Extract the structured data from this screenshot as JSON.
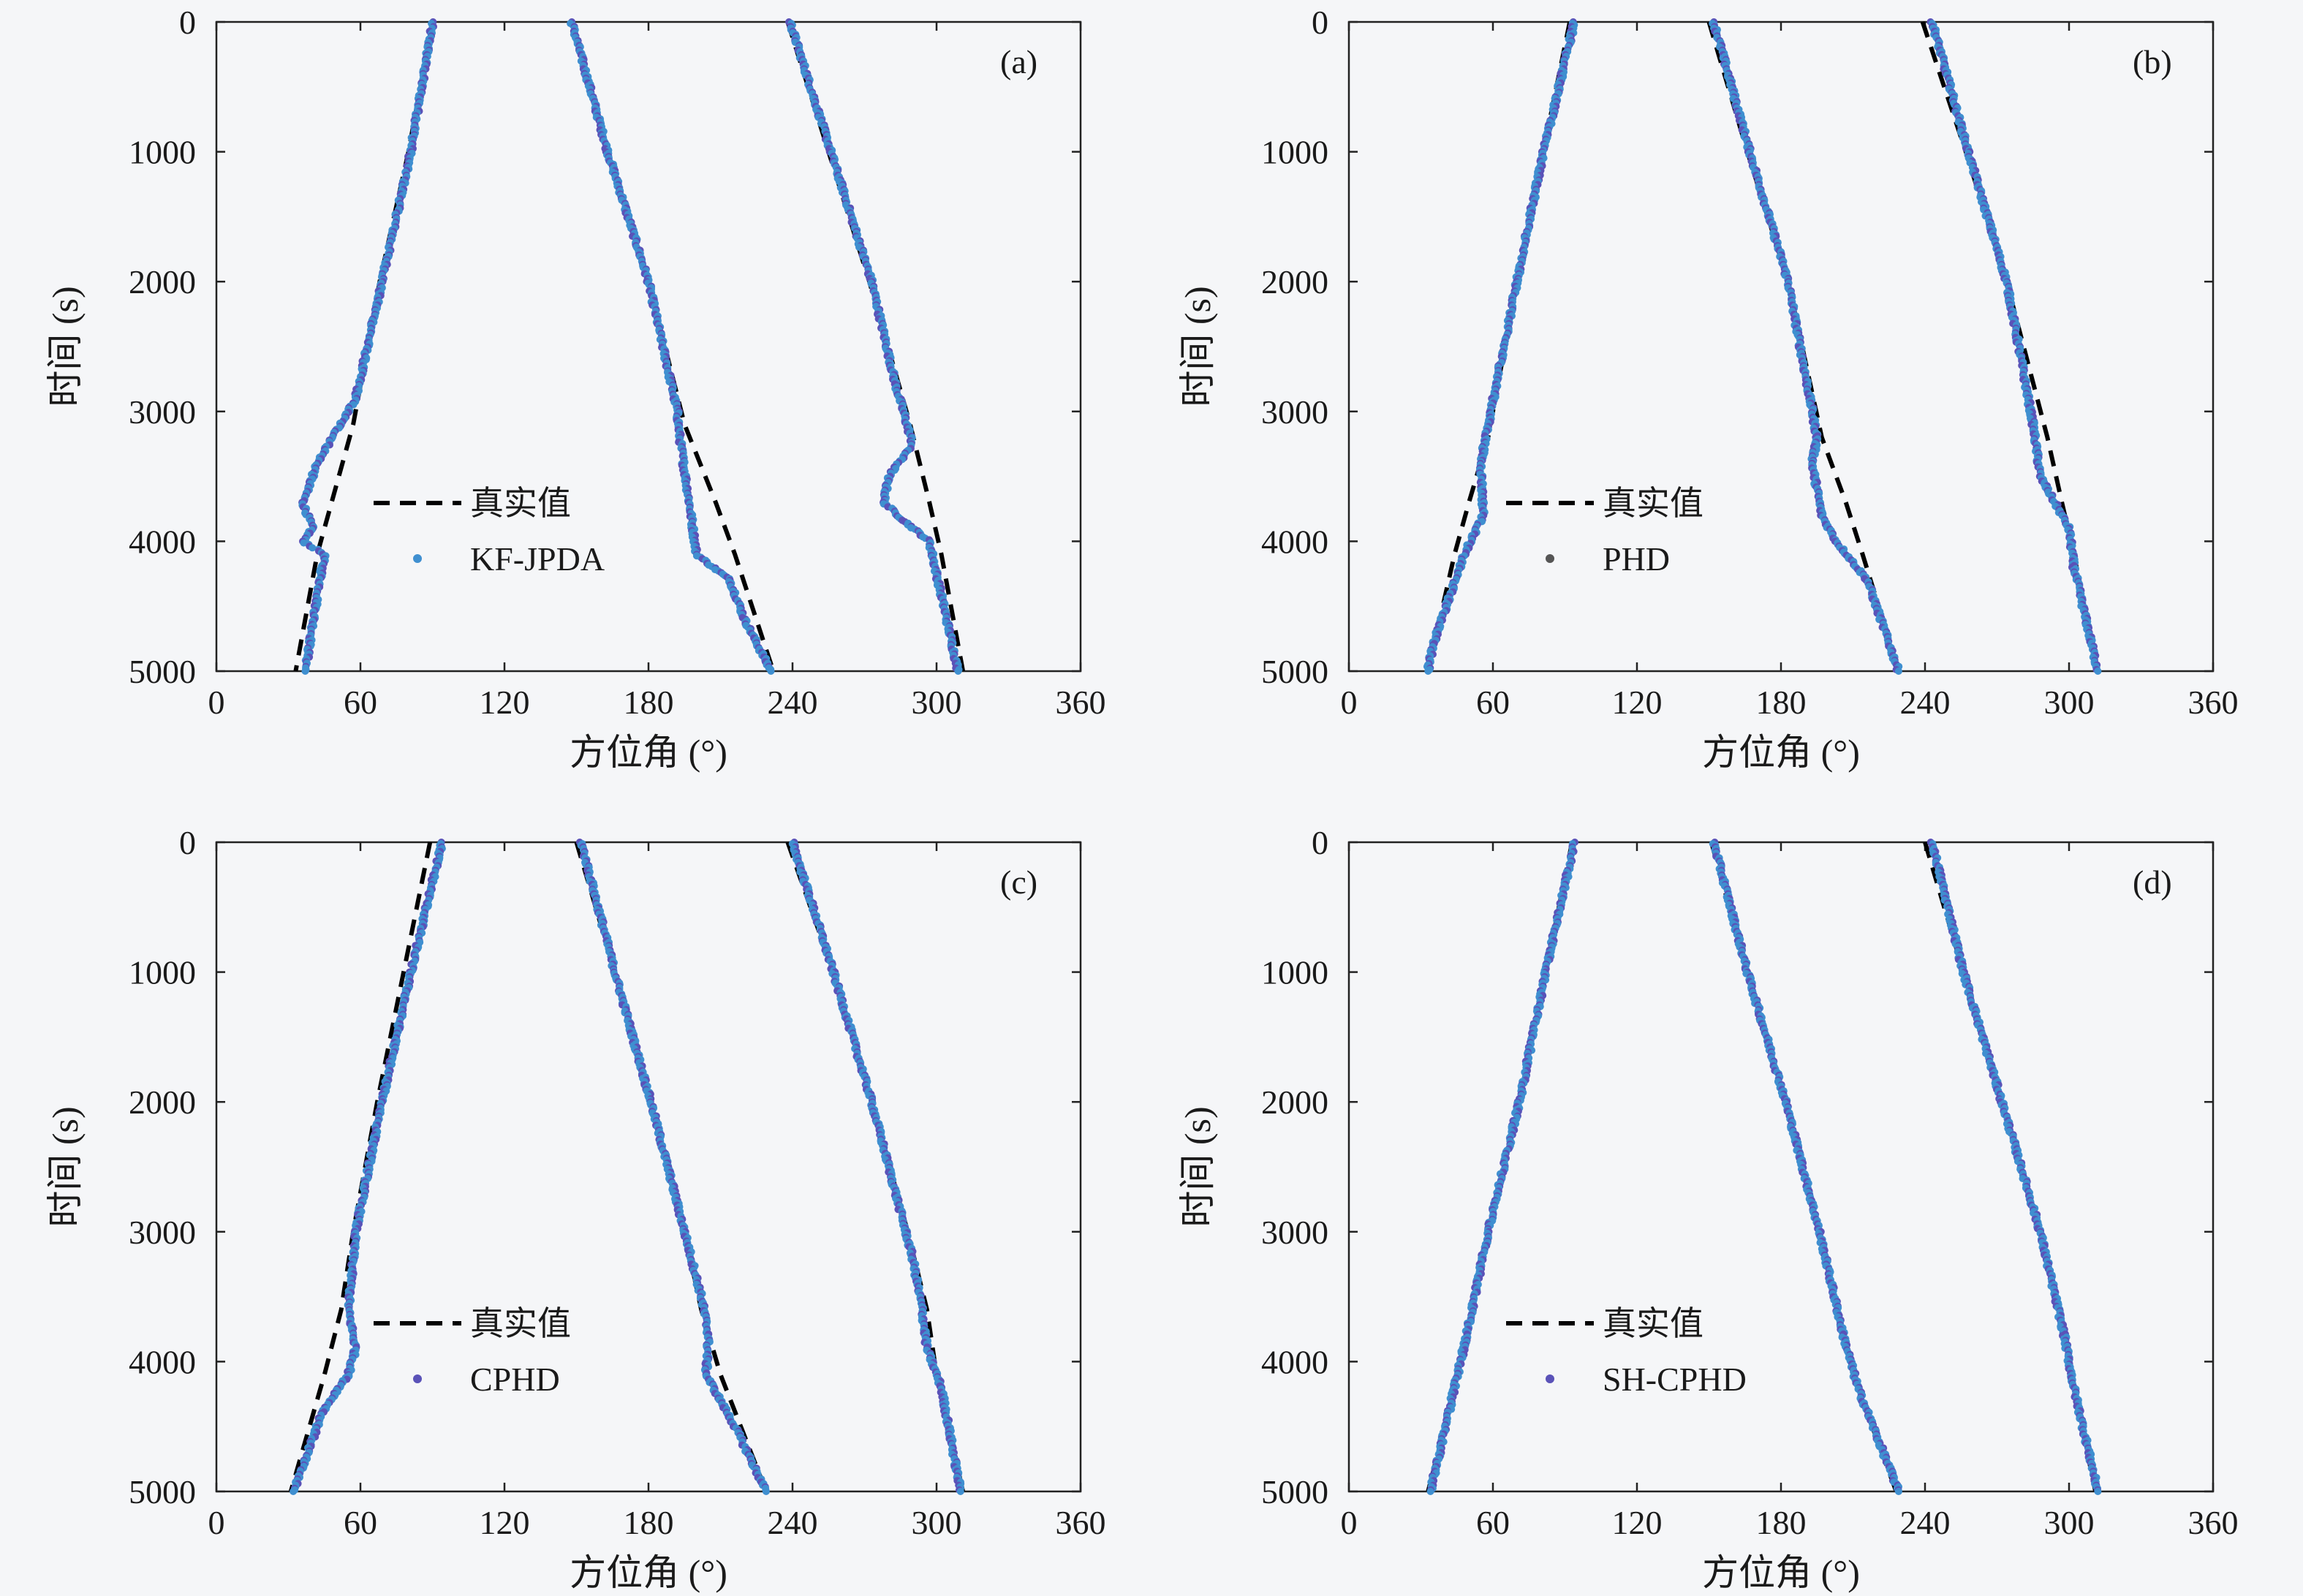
{
  "figure": {
    "background": "#f5f6f8",
    "truth_color": "#000000",
    "estimate_color": "#3f8fd0",
    "estimate_alt_color": "#5a52b8"
  },
  "chart_data": [
    {
      "type": "scatter",
      "panel_label": "(a)",
      "xlabel": "方位角 (°)",
      "ylabel": "时间 (s)",
      "xlim": [
        0,
        360
      ],
      "ylim": [
        5000,
        0
      ],
      "xticks": [
        "0",
        "60",
        "120",
        "180",
        "240",
        "300",
        "360"
      ],
      "yticks": [
        "0",
        "1000",
        "2000",
        "3000",
        "4000",
        "5000"
      ],
      "grid": false,
      "legend": {
        "position": "center-left",
        "entries": [
          "真实值",
          "KF-JPDA"
        ]
      },
      "truth_series": [
        {
          "name": "真实值",
          "points": [
            [
              90,
              0
            ],
            [
              80,
              1000
            ],
            [
              68,
              2000
            ],
            [
              57,
              3100
            ],
            [
              48,
              3700
            ],
            [
              42,
              4100
            ],
            [
              33,
              5000
            ]
          ]
        },
        {
          "name": "真实值",
          "points": [
            [
              148,
              0
            ],
            [
              163,
              1000
            ],
            [
              180,
              2000
            ],
            [
              195,
              3100
            ],
            [
              208,
              3700
            ],
            [
              216,
              4100
            ],
            [
              232,
              5000
            ]
          ]
        },
        {
          "name": "真实值",
          "points": [
            [
              238,
              0
            ],
            [
              255,
              1000
            ],
            [
              272,
              2000
            ],
            [
              289,
              3100
            ],
            [
              297,
              3700
            ],
            [
              302,
              4100
            ],
            [
              311,
              5000
            ]
          ]
        }
      ],
      "estimate_series": [
        {
          "name": "KF-JPDA",
          "points": [
            [
              90,
              0
            ],
            [
              81,
              1000
            ],
            [
              69,
              2000
            ],
            [
              58,
              2900
            ],
            [
              50,
              3150
            ],
            [
              42,
              3400
            ],
            [
              36,
              3700
            ],
            [
              40,
              3900
            ],
            [
              36,
              4000
            ],
            [
              45,
              4100
            ],
            [
              37,
              5000
            ]
          ]
        },
        {
          "name": "KF-JPDA",
          "points": [
            [
              148,
              0
            ],
            [
              163,
              1000
            ],
            [
              180,
              2000
            ],
            [
              192,
              3000
            ],
            [
              193,
              3200
            ],
            [
              197,
              3700
            ],
            [
              200,
              4100
            ],
            [
              214,
              4300
            ],
            [
              220,
              4600
            ],
            [
              231,
              5000
            ]
          ]
        },
        {
          "name": "KF-JPDA",
          "points": [
            [
              239,
              0
            ],
            [
              256,
              1000
            ],
            [
              273,
              2000
            ],
            [
              283,
              2800
            ],
            [
              290,
              3250
            ],
            [
              280,
              3500
            ],
            [
              278,
              3700
            ],
            [
              287,
              3850
            ],
            [
              297,
              4000
            ],
            [
              309,
              5000
            ]
          ]
        }
      ]
    },
    {
      "type": "scatter",
      "panel_label": "(b)",
      "xlabel": "方位角 (°)",
      "ylabel": "时间 (s)",
      "xlim": [
        0,
        360
      ],
      "ylim": [
        5000,
        0
      ],
      "xticks": [
        "0",
        "60",
        "120",
        "180",
        "240",
        "300",
        "360"
      ],
      "yticks": [
        "0",
        "1000",
        "2000",
        "3000",
        "4000",
        "5000"
      ],
      "grid": false,
      "legend": {
        "position": "center-left",
        "entries": [
          "真实值",
          "PHD"
        ]
      },
      "truth_series": [
        {
          "name": "真实值",
          "points": [
            [
              92,
              0
            ],
            [
              81,
              1000
            ],
            [
              70,
              2000
            ],
            [
              58,
              3200
            ],
            [
              50,
              3700
            ],
            [
              44,
              4100
            ],
            [
              33,
              5000
            ]
          ]
        },
        {
          "name": "真实值",
          "points": [
            [
              150,
              0
            ],
            [
              166,
              1000
            ],
            [
              183,
              2000
            ],
            [
              197,
              3200
            ],
            [
              207,
              3700
            ],
            [
              214,
              4100
            ],
            [
              229,
              5000
            ]
          ]
        },
        {
          "name": "真实值",
          "points": [
            [
              239,
              0
            ],
            [
              257,
              1000
            ],
            [
              274,
              2000
            ],
            [
              291,
              3200
            ],
            [
              297,
              3700
            ],
            [
              302,
              4100
            ],
            [
              312,
              5000
            ]
          ]
        }
      ],
      "estimate_series": [
        {
          "name": "PHD",
          "points": [
            [
              94,
              0
            ],
            [
              81,
              1000
            ],
            [
              70,
              2000
            ],
            [
              57,
              3200
            ],
            [
              55,
              3400
            ],
            [
              56,
              3800
            ],
            [
              48,
              4100
            ],
            [
              35,
              4800
            ],
            [
              33,
              5000
            ]
          ]
        },
        {
          "name": "PHD",
          "points": [
            [
              152,
              0
            ],
            [
              167,
              1000
            ],
            [
              183,
              2000
            ],
            [
              195,
              3200
            ],
            [
              193,
              3400
            ],
            [
              197,
              3800
            ],
            [
              203,
              4000
            ],
            [
              216,
              4300
            ],
            [
              229,
              5000
            ]
          ]
        },
        {
          "name": "PHD",
          "points": [
            [
              243,
              0
            ],
            [
              258,
              1000
            ],
            [
              274,
              2000
            ],
            [
              285,
              3100
            ],
            [
              288,
              3500
            ],
            [
              300,
              3900
            ],
            [
              302,
              4200
            ],
            [
              312,
              5000
            ]
          ]
        }
      ]
    },
    {
      "type": "scatter",
      "panel_label": "(c)",
      "xlabel": "方位角 (°)",
      "ylabel": "时间 (s)",
      "xlim": [
        0,
        360
      ],
      "ylim": [
        5000,
        0
      ],
      "xticks": [
        "0",
        "60",
        "120",
        "180",
        "240",
        "300",
        "360"
      ],
      "yticks": [
        "0",
        "1000",
        "2000",
        "3000",
        "4000",
        "5000"
      ],
      "grid": false,
      "legend": {
        "position": "center-left",
        "entries": [
          "真实值",
          "CPHD"
        ]
      },
      "truth_series": [
        {
          "name": "真实值",
          "points": [
            [
              89,
              0
            ],
            [
              78,
              1000
            ],
            [
              67,
              2000
            ],
            [
              57,
              3000
            ],
            [
              52,
              3600
            ],
            [
              45,
              4100
            ],
            [
              31,
              5000
            ]
          ]
        },
        {
          "name": "真实值",
          "points": [
            [
              150,
              0
            ],
            [
              166,
              1000
            ],
            [
              181,
              2000
            ],
            [
              195,
              3000
            ],
            [
              202,
              3600
            ],
            [
              210,
              4100
            ],
            [
              229,
              5000
            ]
          ]
        },
        {
          "name": "真实值",
          "points": [
            [
              238,
              0
            ],
            [
              257,
              1000
            ],
            [
              273,
              2000
            ],
            [
              288,
              3000
            ],
            [
              296,
              3600
            ],
            [
              300,
              4100
            ],
            [
              311,
              5000
            ]
          ]
        }
      ],
      "estimate_series": [
        {
          "name": "CPHD",
          "points": [
            [
              94,
              0
            ],
            [
              81,
              1000
            ],
            [
              69,
              2000
            ],
            [
              58,
              3000
            ],
            [
              55,
              3600
            ],
            [
              58,
              3900
            ],
            [
              55,
              4100
            ],
            [
              44,
              4400
            ],
            [
              32,
              5000
            ]
          ]
        },
        {
          "name": "CPHD",
          "points": [
            [
              152,
              0
            ],
            [
              166,
              1000
            ],
            [
              181,
              2000
            ],
            [
              195,
              3000
            ],
            [
              202,
              3500
            ],
            [
              205,
              3800
            ],
            [
              204,
              4100
            ],
            [
              216,
              4500
            ],
            [
              229,
              5000
            ]
          ]
        },
        {
          "name": "CPHD",
          "points": [
            [
              240,
              0
            ],
            [
              257,
              1000
            ],
            [
              273,
              2000
            ],
            [
              290,
              3200
            ],
            [
              294,
              3600
            ],
            [
              296,
              3900
            ],
            [
              302,
              4200
            ],
            [
              310,
              5000
            ]
          ]
        }
      ]
    },
    {
      "type": "scatter",
      "panel_label": "(d)",
      "xlabel": "方位角 (°)",
      "ylabel": "时间 (s)",
      "xlim": [
        0,
        360
      ],
      "ylim": [
        5000,
        0
      ],
      "xticks": [
        "0",
        "60",
        "120",
        "180",
        "240",
        "300",
        "360"
      ],
      "yticks": [
        "0",
        "1000",
        "2000",
        "3000",
        "4000",
        "5000"
      ],
      "grid": false,
      "legend": {
        "position": "center-left",
        "entries": [
          "真实值",
          "SH-CPHD"
        ]
      },
      "truth_series": [
        {
          "name": "真实值",
          "points": [
            [
              93,
              0
            ],
            [
              82,
              1000
            ],
            [
              71,
              2000
            ],
            [
              58,
              3000
            ],
            [
              49,
              3800
            ],
            [
              44,
              4200
            ],
            [
              33,
              5000
            ]
          ]
        },
        {
          "name": "真实值",
          "points": [
            [
              151,
              0
            ],
            [
              166,
              1000
            ],
            [
              182,
              2000
            ],
            [
              196,
              3000
            ],
            [
              206,
              3800
            ],
            [
              212,
              4200
            ],
            [
              228,
              5000
            ]
          ]
        },
        {
          "name": "真实值",
          "points": [
            [
              240,
              0
            ],
            [
              256,
              1000
            ],
            [
              272,
              2000
            ],
            [
              288,
              3000
            ],
            [
              298,
              3800
            ],
            [
              302,
              4200
            ],
            [
              311,
              5000
            ]
          ]
        }
      ],
      "estimate_series": [
        {
          "name": "SH-CPHD",
          "points": [
            [
              94,
              0
            ],
            [
              82,
              1000
            ],
            [
              71,
              2000
            ],
            [
              58,
              3000
            ],
            [
              49,
              3800
            ],
            [
              44,
              4200
            ],
            [
              34,
              5000
            ]
          ]
        },
        {
          "name": "SH-CPHD",
          "points": [
            [
              152,
              0
            ],
            [
              166,
              1000
            ],
            [
              182,
              2000
            ],
            [
              196,
              3000
            ],
            [
              206,
              3800
            ],
            [
              212,
              4200
            ],
            [
              229,
              5000
            ]
          ]
        },
        {
          "name": "SH-CPHD",
          "points": [
            [
              243,
              0
            ],
            [
              256,
              1000
            ],
            [
              272,
              2000
            ],
            [
              288,
              3000
            ],
            [
              298,
              3800
            ],
            [
              302,
              4200
            ],
            [
              312,
              5000
            ]
          ]
        }
      ]
    }
  ]
}
